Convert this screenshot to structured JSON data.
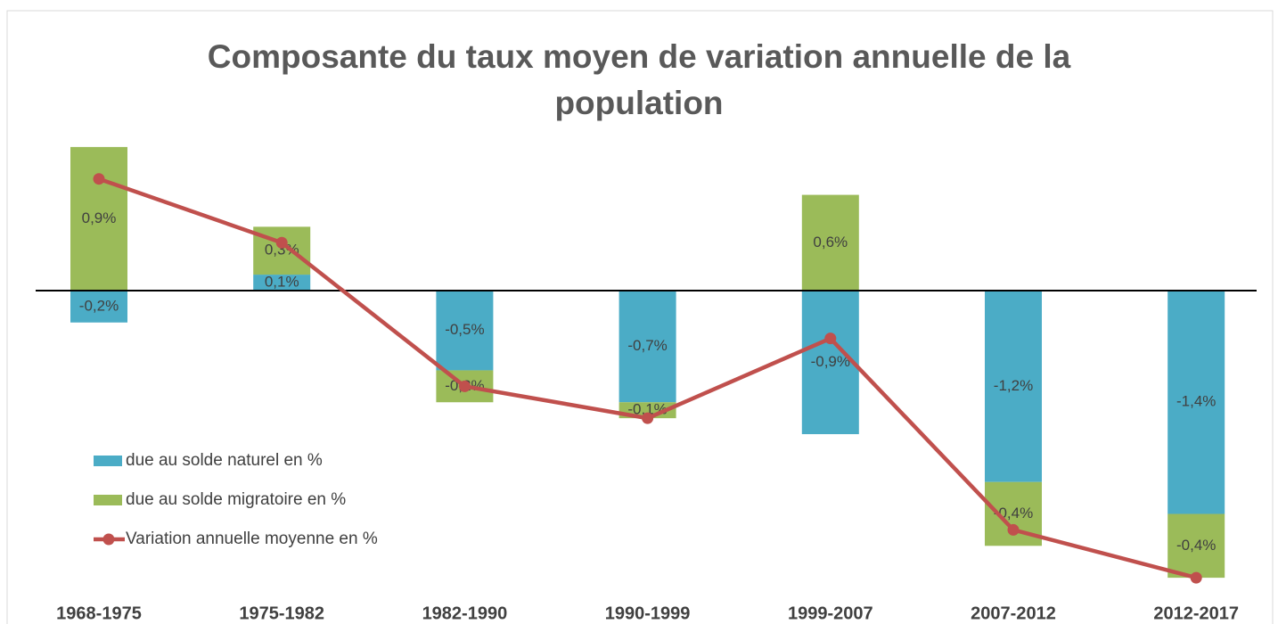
{
  "chart_data": {
    "type": "bar",
    "title": "Composante du taux moyen de variation annuelle de la population",
    "categories": [
      "1968-1975",
      "1975-1982",
      "1982-1990",
      "1990-1999",
      "1999-2007",
      "2007-2012",
      "2012-2017"
    ],
    "stacked": true,
    "ylim": [
      -1.9,
      1.0
    ],
    "series": [
      {
        "name": "due au solde naturel en %",
        "color": "#4bacc6",
        "type": "bar",
        "values": [
          -0.2,
          0.1,
          -0.5,
          -0.7,
          -0.9,
          -1.2,
          -1.4
        ],
        "value_labels": [
          "-0,2%",
          "0,1%",
          "-0,5%",
          "-0,7%",
          "-0,9%",
          "-1,2%",
          "-1,4%"
        ]
      },
      {
        "name": "due au solde migratoire en %",
        "color": "#9bbb59",
        "type": "bar",
        "values": [
          0.9,
          0.3,
          -0.2,
          -0.1,
          0.6,
          -0.4,
          -0.4
        ],
        "value_labels": [
          "0,9%",
          "0,3%",
          "-0,2%",
          "-0,1%",
          "0,6%",
          "-0,4%",
          "-0,4%"
        ]
      },
      {
        "name": "Variation annuelle moyenne en %",
        "color": "#c0504d",
        "type": "line",
        "values": [
          0.7,
          0.3,
          -0.6,
          -0.8,
          -0.3,
          -1.5,
          -1.8
        ]
      }
    ]
  }
}
